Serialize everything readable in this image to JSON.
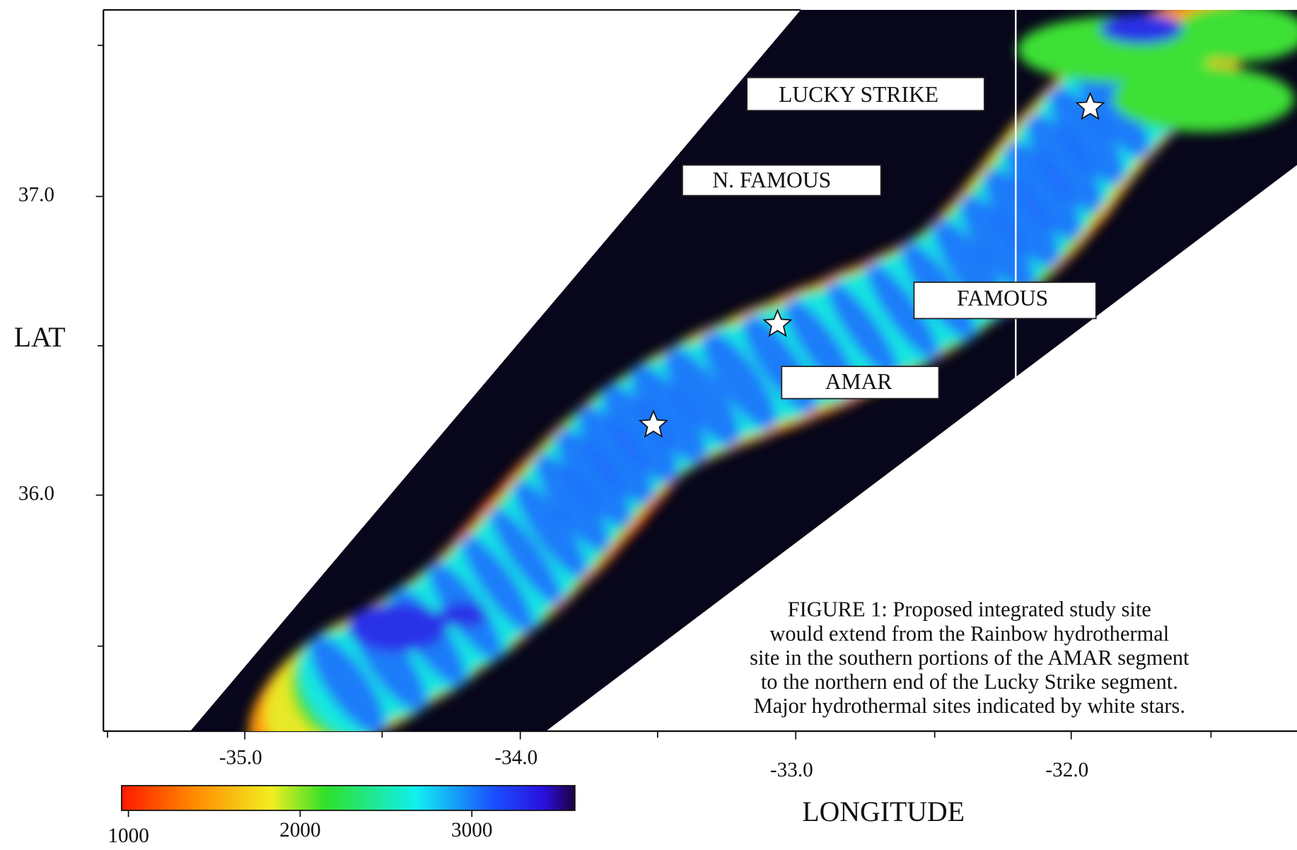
{
  "axes": {
    "y_label": "LAT",
    "x_label": "LONGITUDE",
    "lat_ticks": [
      {
        "value": 37,
        "label": "37.0"
      },
      {
        "value": 36,
        "label": "36.0"
      }
    ],
    "lon_ticks": [
      {
        "value": -35,
        "label": "-35.0"
      },
      {
        "value": -34,
        "label": "-34.0"
      },
      {
        "value": -33,
        "label": "-33.0"
      },
      {
        "value": -32,
        "label": "-32.0"
      }
    ]
  },
  "site_labels": [
    "LUCKY STRIKE",
    "N. FAMOUS",
    "FAMOUS",
    "AMAR"
  ],
  "caption": [
    "FIGURE 1: Proposed integrated study site",
    "would extend from the Rainbow hydrothermal",
    "site in the southern portions of the AMAR segment",
    "to the northern end of the Lucky Strike segment.",
    "Major hydrothermal sites indicated by white stars."
  ],
  "colorbar": {
    "range": [
      960,
      3600
    ],
    "ticks": [
      1000,
      2000,
      3000
    ]
  }
}
